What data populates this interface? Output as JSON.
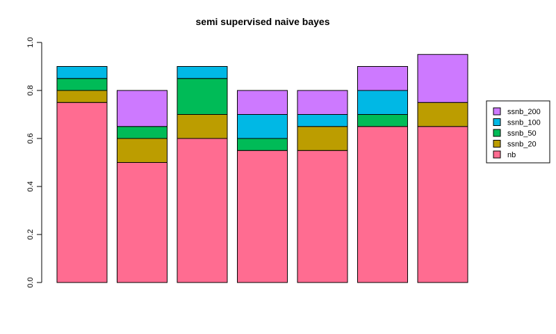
{
  "chart_data": {
    "type": "bar",
    "stacked": true,
    "title": "semi supervised naive bayes",
    "xlabel": "",
    "ylabel": "",
    "categories": [
      "",
      "",
      "",
      "",
      "",
      "",
      ""
    ],
    "ylim": [
      0,
      1
    ],
    "yticks": [
      "0.0",
      "0.2",
      "0.4",
      "0.6",
      "0.8",
      "1.0"
    ],
    "ytick_values": [
      0,
      0.2,
      0.4,
      0.6,
      0.8,
      1.0
    ],
    "series": [
      {
        "name": "nb",
        "color": "#FF6C91",
        "values": [
          0.75,
          0.5,
          0.6,
          0.55,
          0.55,
          0.65,
          0.65
        ]
      },
      {
        "name": "ssnb_20",
        "color": "#BC9D00",
        "values": [
          0.05,
          0.1,
          0.1,
          0.0,
          0.1,
          0.0,
          0.1
        ]
      },
      {
        "name": "ssnb_50",
        "color": "#00BB57",
        "values": [
          0.05,
          0.05,
          0.15,
          0.05,
          0.0,
          0.05,
          0.0
        ]
      },
      {
        "name": "ssnb_100",
        "color": "#00B8E5",
        "values": [
          0.05,
          0.0,
          0.05,
          0.1,
          0.05,
          0.1,
          0.0
        ]
      },
      {
        "name": "ssnb_200",
        "color": "#CD79FF",
        "values": [
          0.0,
          0.15,
          0.0,
          0.1,
          0.1,
          0.1,
          0.2
        ]
      }
    ],
    "legend": {
      "position": "right",
      "order": [
        "ssnb_200",
        "ssnb_100",
        "ssnb_50",
        "ssnb_20",
        "nb"
      ]
    },
    "grid": false
  }
}
